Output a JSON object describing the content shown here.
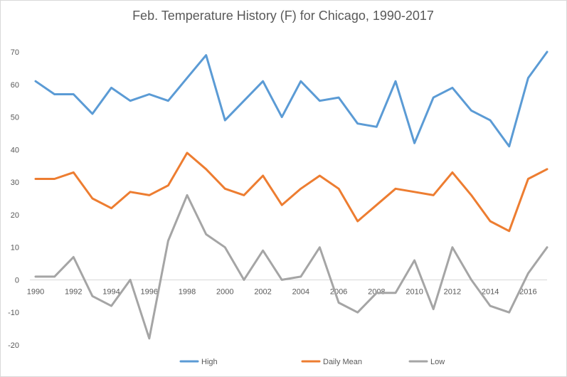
{
  "chart_data": {
    "type": "line",
    "title": "Feb. Temperature History (F) for Chicago, 1990-2017",
    "xlabel": "",
    "ylabel": "",
    "x": [
      1990,
      1991,
      1992,
      1993,
      1994,
      1995,
      1996,
      1997,
      1998,
      1999,
      2000,
      2001,
      2002,
      2003,
      2004,
      2005,
      2006,
      2007,
      2008,
      2009,
      2010,
      2011,
      2012,
      2013,
      2014,
      2015,
      2016,
      2017
    ],
    "x_tick_labels": [
      "1990",
      "1992",
      "1994",
      "1996",
      "1998",
      "2000",
      "2002",
      "2004",
      "2006",
      "2008",
      "2010",
      "2012",
      "2014",
      "2016"
    ],
    "ylim": [
      -20,
      70
    ],
    "y_tick_labels": [
      "70",
      "60",
      "50",
      "40",
      "30",
      "20",
      "10",
      "0",
      "-10",
      "-20"
    ],
    "grid": false,
    "legend_position": "bottom",
    "series": [
      {
        "name": "High",
        "color": "#5b9bd5",
        "values": [
          61,
          57,
          57,
          51,
          59,
          55,
          57,
          55,
          62,
          69,
          49,
          55,
          61,
          50,
          61,
          55,
          56,
          48,
          47,
          61,
          42,
          56,
          59,
          52,
          49,
          41,
          62,
          70
        ]
      },
      {
        "name": "Daily Mean",
        "color": "#ed7d31",
        "values": [
          31,
          31,
          33,
          25,
          22,
          27,
          26,
          29,
          39,
          34,
          28,
          26,
          32,
          23,
          28,
          32,
          28,
          18,
          23,
          28,
          27,
          26,
          33,
          26,
          18,
          15,
          31,
          34
        ]
      },
      {
        "name": "Low",
        "color": "#a5a5a5",
        "values": [
          1,
          1,
          7,
          -5,
          -8,
          0,
          -18,
          12,
          26,
          14,
          10,
          0,
          9,
          0,
          1,
          10,
          -7,
          -10,
          -4,
          -4,
          6,
          -9,
          10,
          0,
          -8,
          -10,
          2,
          10
        ]
      }
    ]
  }
}
